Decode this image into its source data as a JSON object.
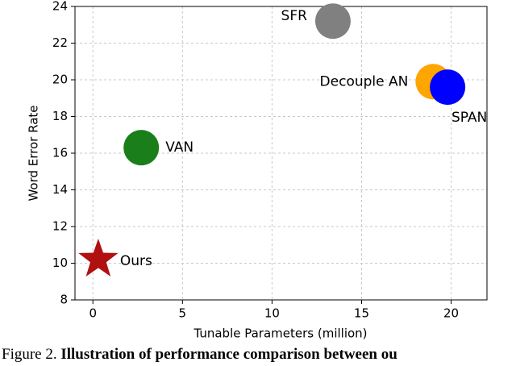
{
  "chart_data": {
    "type": "scatter",
    "x_label": "Tunable Parameters (million)",
    "y_label": "Word Error Rate",
    "series": [
      {
        "name": "Ours",
        "color": "#b01010",
        "marker": "star",
        "x": [
          0.3
        ],
        "values": [
          10.2
        ]
      },
      {
        "name": "VAN",
        "color": "#1a7f1a",
        "marker": "circle",
        "x": [
          2.7
        ],
        "values": [
          16.3
        ]
      },
      {
        "name": "SFR",
        "color": "#808080",
        "marker": "circle",
        "x": [
          13.4
        ],
        "values": [
          23.2
        ]
      },
      {
        "name": "Decouple AN",
        "color": "#ffa500",
        "marker": "circle",
        "x": [
          19.0
        ],
        "values": [
          19.9
        ]
      },
      {
        "name": "SPAN",
        "color": "#0000ff",
        "marker": "circle",
        "x": [
          19.8
        ],
        "values": [
          19.6
        ]
      }
    ],
    "xlim": [
      -1,
      22
    ],
    "xticks": [
      0,
      5,
      10,
      15,
      20
    ],
    "ylim": [
      8,
      24
    ],
    "yticks": [
      8,
      10,
      12,
      14,
      16,
      18,
      20,
      22,
      24
    ],
    "grid": true
  },
  "caption": {
    "label": "Figure 2.",
    "text": "Illustration of performance comparison between ou"
  }
}
